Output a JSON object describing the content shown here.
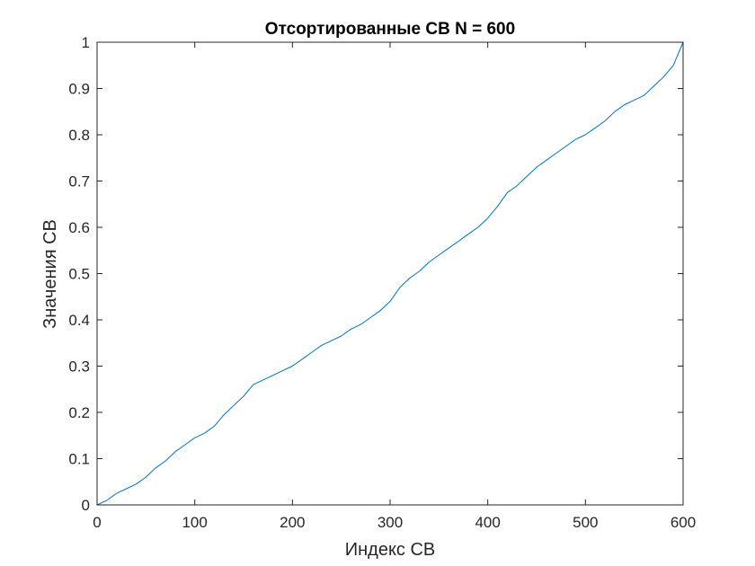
{
  "chart_data": {
    "type": "line",
    "title": "Отсортированные СВ N = 600",
    "xlabel": "Индекс СВ",
    "ylabel": "Значения СВ",
    "xlim": [
      0,
      600
    ],
    "ylim": [
      0,
      1
    ],
    "x_ticks": [
      0,
      100,
      200,
      300,
      400,
      500,
      600
    ],
    "y_ticks": [
      0,
      0.1,
      0.2,
      0.3,
      0.4,
      0.5,
      0.6,
      0.7,
      0.8,
      0.9,
      1
    ],
    "x_tick_labels": [
      "0",
      "100",
      "200",
      "300",
      "400",
      "500",
      "600"
    ],
    "y_tick_labels": [
      "0",
      "0.1",
      "0.2",
      "0.3",
      "0.4",
      "0.5",
      "0.6",
      "0.7",
      "0.8",
      "0.9",
      "1"
    ],
    "grid": false,
    "line_color": "#0072BD",
    "axis_color": "#262626",
    "series": [
      {
        "x": [
          0,
          10,
          20,
          30,
          40,
          50,
          60,
          70,
          80,
          90,
          100,
          110,
          120,
          130,
          140,
          150,
          160,
          170,
          180,
          190,
          200,
          210,
          220,
          230,
          240,
          250,
          260,
          270,
          280,
          290,
          300,
          310,
          320,
          330,
          340,
          350,
          360,
          370,
          380,
          390,
          400,
          410,
          420,
          430,
          440,
          450,
          460,
          470,
          480,
          490,
          500,
          510,
          520,
          530,
          540,
          550,
          560,
          570,
          580,
          590,
          600
        ],
        "values": [
          0.0,
          0.01,
          0.025,
          0.035,
          0.045,
          0.06,
          0.08,
          0.095,
          0.115,
          0.13,
          0.145,
          0.155,
          0.17,
          0.195,
          0.215,
          0.235,
          0.26,
          0.27,
          0.28,
          0.29,
          0.3,
          0.315,
          0.33,
          0.345,
          0.355,
          0.365,
          0.38,
          0.39,
          0.405,
          0.42,
          0.44,
          0.47,
          0.49,
          0.505,
          0.525,
          0.54,
          0.555,
          0.57,
          0.585,
          0.6,
          0.62,
          0.645,
          0.675,
          0.69,
          0.71,
          0.73,
          0.745,
          0.76,
          0.775,
          0.79,
          0.8,
          0.815,
          0.83,
          0.85,
          0.865,
          0.875,
          0.885,
          0.905,
          0.925,
          0.95,
          1.0
        ]
      }
    ]
  }
}
